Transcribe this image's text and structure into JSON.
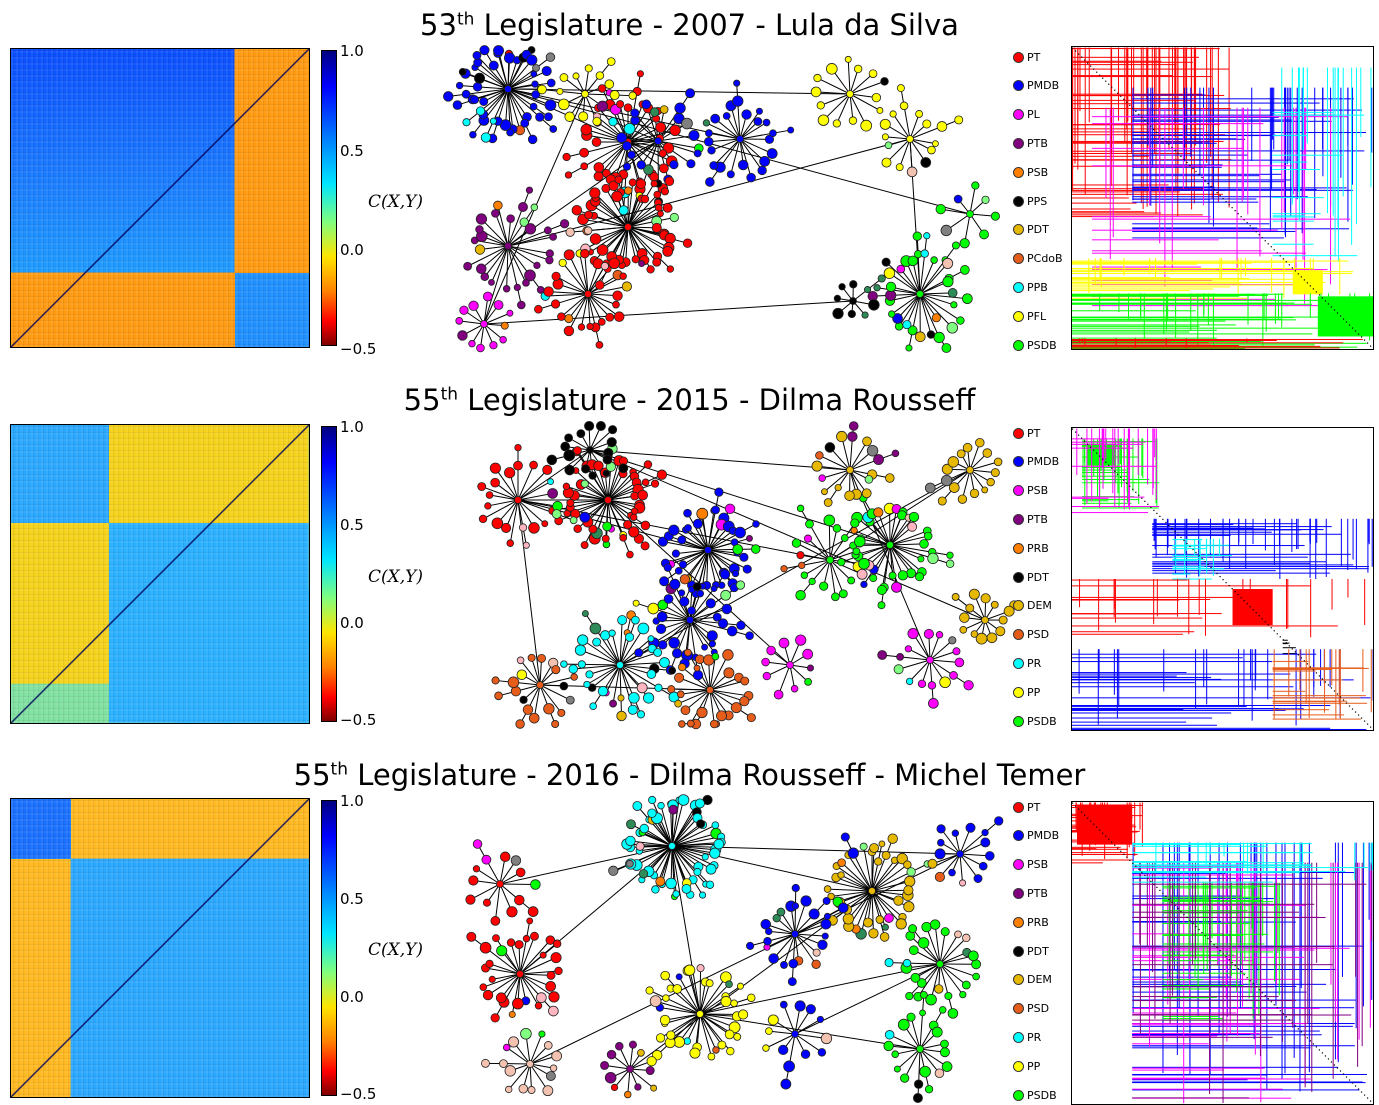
{
  "panels": [
    {
      "title_prefix": "53",
      "title_sup": "th",
      "title_rest": " Legislature - 2007 - Lula da Silva",
      "colorbar_ticks": [
        "1.0",
        "0.5",
        "0.0",
        "−0.5"
      ],
      "axis_label": "C(X,Y)",
      "legend": [
        {
          "party": "PT",
          "color": "#ff0000"
        },
        {
          "party": "PMDB",
          "color": "#0000ff"
        },
        {
          "party": "PL",
          "color": "#ff00ff"
        },
        {
          "party": "PTB",
          "color": "#800080"
        },
        {
          "party": "PSB",
          "color": "#ff8000"
        },
        {
          "party": "PPS",
          "color": "#000000"
        },
        {
          "party": "PDT",
          "color": "#e6b800"
        },
        {
          "party": "PCdoB",
          "color": "#e65c1a"
        },
        {
          "party": "PPB",
          "color": "#00ffff"
        },
        {
          "party": "PFL",
          "color": "#ffff00"
        },
        {
          "party": "PSDB",
          "color": "#00ff00"
        }
      ]
    },
    {
      "title_prefix": "55",
      "title_sup": "th",
      "title_rest": " Legislature - 2015 - Dilma Rousseff",
      "colorbar_ticks": [
        "1.0",
        "0.5",
        "0.0",
        "−0.5"
      ],
      "axis_label": "C(X,Y)",
      "legend": [
        {
          "party": "PT",
          "color": "#ff0000"
        },
        {
          "party": "PMDB",
          "color": "#0000ff"
        },
        {
          "party": "PSB",
          "color": "#ff00ff"
        },
        {
          "party": "PTB",
          "color": "#800080"
        },
        {
          "party": "PRB",
          "color": "#ff8000"
        },
        {
          "party": "PDT",
          "color": "#000000"
        },
        {
          "party": "DEM",
          "color": "#e6b800"
        },
        {
          "party": "PSD",
          "color": "#e65c1a"
        },
        {
          "party": "PR",
          "color": "#00ffff"
        },
        {
          "party": "PP",
          "color": "#ffff00"
        },
        {
          "party": "PSDB",
          "color": "#00ff00"
        }
      ]
    },
    {
      "title_prefix": "55",
      "title_sup": "th",
      "title_rest": " Legislature - 2016 - Dilma Rousseff - Michel Temer",
      "colorbar_ticks": [
        "1.0",
        "0.5",
        "0.0",
        "−0.5"
      ],
      "axis_label": "C(X,Y)",
      "legend": [
        {
          "party": "PT",
          "color": "#ff0000"
        },
        {
          "party": "PMDB",
          "color": "#0000ff"
        },
        {
          "party": "PSB",
          "color": "#ff00ff"
        },
        {
          "party": "PTB",
          "color": "#800080"
        },
        {
          "party": "PRB",
          "color": "#ff8000"
        },
        {
          "party": "PDT",
          "color": "#000000"
        },
        {
          "party": "DEM",
          "color": "#e6b800"
        },
        {
          "party": "PSD",
          "color": "#e65c1a"
        },
        {
          "party": "PR",
          "color": "#00ffff"
        },
        {
          "party": "PP",
          "color": "#ffff00"
        },
        {
          "party": "PSDB",
          "color": "#00ff00"
        }
      ]
    }
  ]
}
